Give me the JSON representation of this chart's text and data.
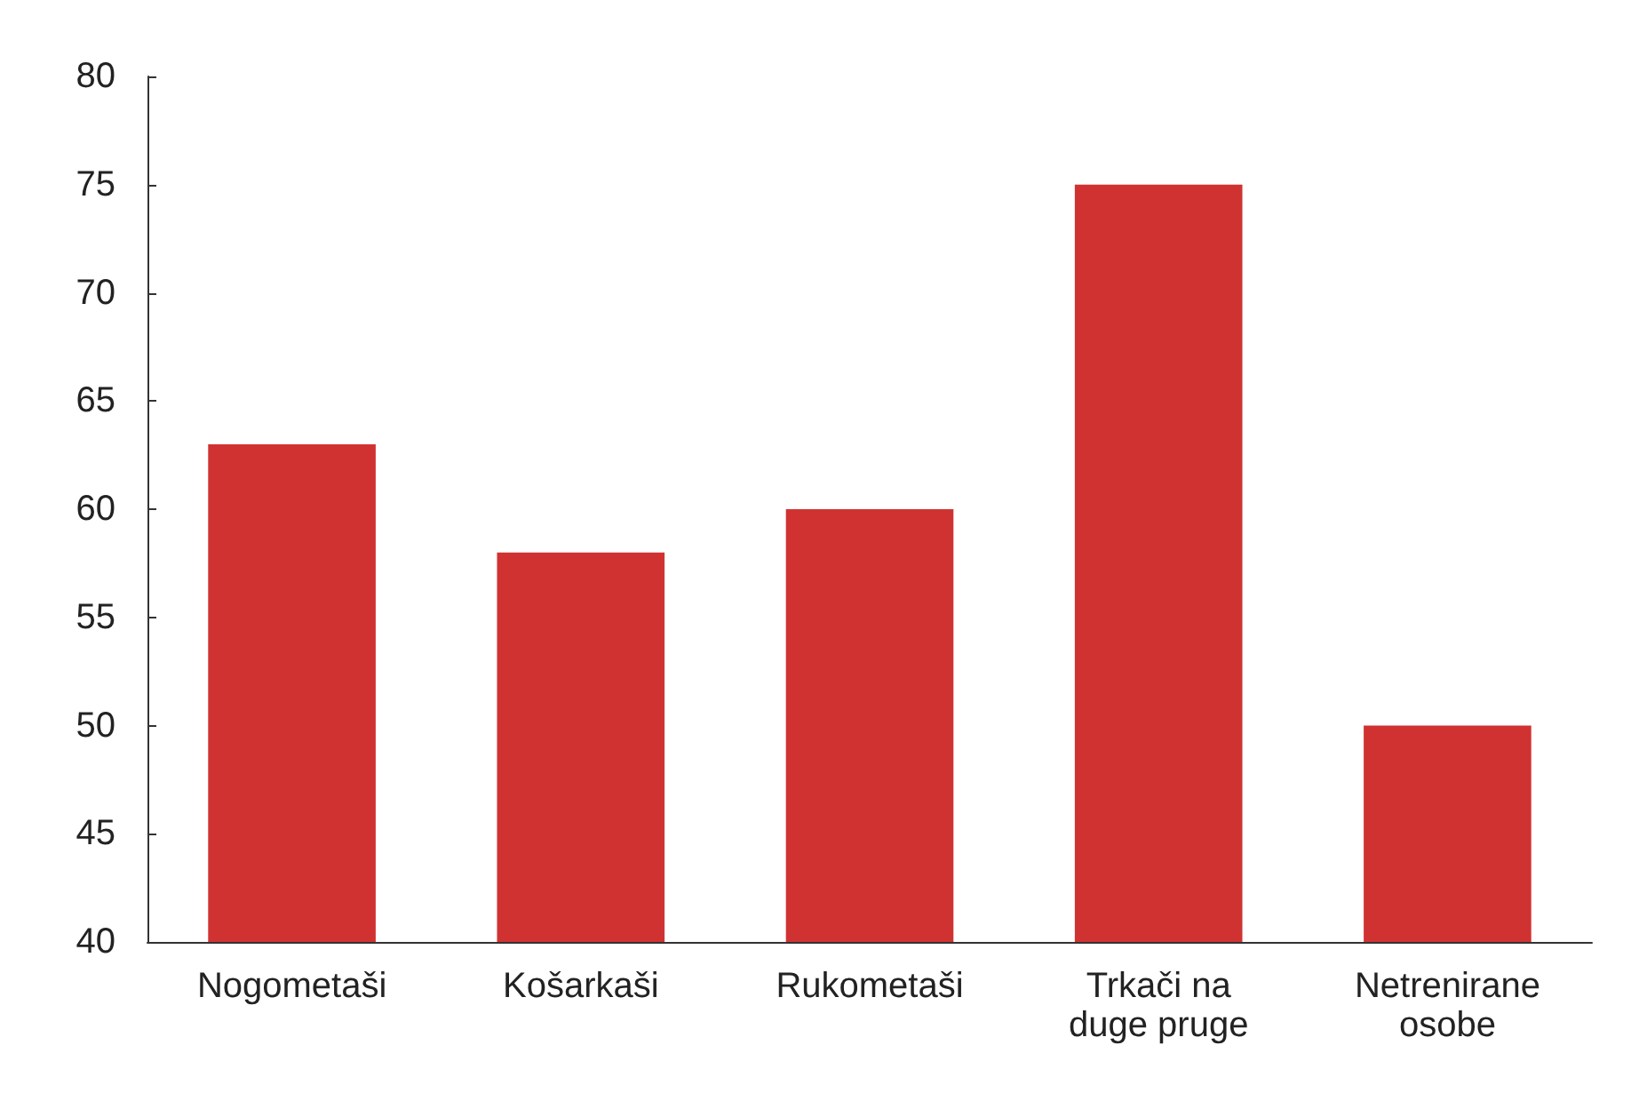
{
  "chart_data": {
    "type": "bar",
    "categories": [
      "Nogometaši",
      "Košarkaši",
      "Rukometaši",
      "Trkači na\nduge pruge",
      "Netrenirane\nosobe"
    ],
    "values": [
      63,
      58,
      60,
      75,
      50
    ],
    "color": "#d03232",
    "ylim": [
      40,
      80
    ],
    "yticks": [
      40,
      45,
      50,
      55,
      60,
      65,
      70,
      75,
      80
    ],
    "grid": false
  }
}
